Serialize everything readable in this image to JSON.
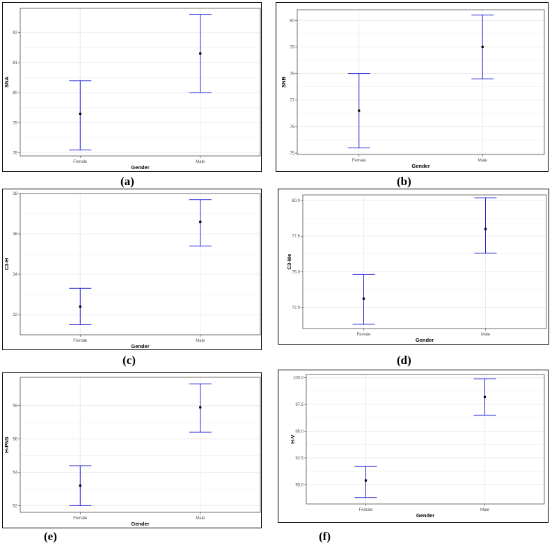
{
  "colors": {
    "errorbar": "#2323d6",
    "point": "#000000",
    "grid": "#ebebeb",
    "axis": "#333333"
  },
  "captions": [
    "(a)",
    "(b)",
    "(c)",
    "(d)",
    "(e)",
    "(f)"
  ],
  "chart_data": [
    {
      "type": "errorbar",
      "xlabel": "Gender",
      "ylabel": "SNA",
      "categories": [
        "Female",
        "Male"
      ],
      "mean": [
        79.3,
        81.3
      ],
      "lower": [
        78.1,
        80.0
      ],
      "upper": [
        80.4,
        82.6
      ],
      "ylim": [
        77.9,
        82.8
      ],
      "yticks": [
        78,
        79,
        80,
        81,
        82
      ],
      "ytick_labels": [
        "78",
        "79",
        "80",
        "81",
        "82"
      ],
      "grid": true
    },
    {
      "type": "errorbar",
      "xlabel": "Gender",
      "ylabel": "SNB",
      "categories": [
        "Female",
        "Male"
      ],
      "mean": [
        76.6,
        79.0
      ],
      "lower": [
        75.2,
        77.8
      ],
      "upper": [
        78.0,
        80.2
      ],
      "ylim": [
        74.95,
        80.4
      ],
      "yticks": [
        75,
        76,
        77,
        78,
        79,
        80
      ],
      "ytick_labels": [
        "75",
        "76",
        "77",
        "78",
        "79",
        "80"
      ],
      "grid": true
    },
    {
      "type": "errorbar",
      "xlabel": "Gender",
      "ylabel": "C3-H",
      "categories": [
        "Female",
        "Male"
      ],
      "mean": [
        32.4,
        36.6
      ],
      "lower": [
        31.5,
        35.4
      ],
      "upper": [
        33.3,
        37.7
      ],
      "ylim": [
        31.0,
        38.0
      ],
      "yticks": [
        32,
        34,
        36,
        38
      ],
      "ytick_labels": [
        "32",
        "34",
        "36",
        "38"
      ],
      "grid": true
    },
    {
      "type": "errorbar",
      "xlabel": "Gender",
      "ylabel": "C3-Me",
      "categories": [
        "Female",
        "Male"
      ],
      "mean": [
        73.1,
        78.0
      ],
      "lower": [
        71.3,
        76.3
      ],
      "upper": [
        74.8,
        80.2
      ],
      "ylim": [
        71.0,
        80.4
      ],
      "yticks": [
        72.5,
        75.0,
        77.5,
        80.0
      ],
      "ytick_labels": [
        "72.5",
        "75.0",
        "77.5",
        "80.0"
      ],
      "grid": true
    },
    {
      "type": "errorbar",
      "xlabel": "Gender",
      "ylabel": "H-PNS",
      "categories": [
        "Female",
        "Male"
      ],
      "mean": [
        53.2,
        57.9
      ],
      "lower": [
        52.0,
        56.4
      ],
      "upper": [
        54.4,
        59.3
      ],
      "ylim": [
        51.6,
        59.7
      ],
      "yticks": [
        52,
        54,
        56,
        58
      ],
      "ytick_labels": [
        "52",
        "54",
        "56",
        "58"
      ],
      "grid": true
    },
    {
      "type": "errorbar",
      "xlabel": "Gender",
      "ylabel": "H-V",
      "categories": [
        "Female",
        "Male"
      ],
      "mean": [
        90.4,
        98.2
      ],
      "lower": [
        88.8,
        96.5
      ],
      "upper": [
        91.7,
        99.9
      ],
      "ylim": [
        88.2,
        100.3
      ],
      "yticks": [
        90.0,
        92.5,
        95.0,
        97.5,
        100.0
      ],
      "ytick_labels": [
        "90.0",
        "92.5",
        "95.0",
        "97.5",
        "100.0"
      ],
      "grid": true
    }
  ]
}
